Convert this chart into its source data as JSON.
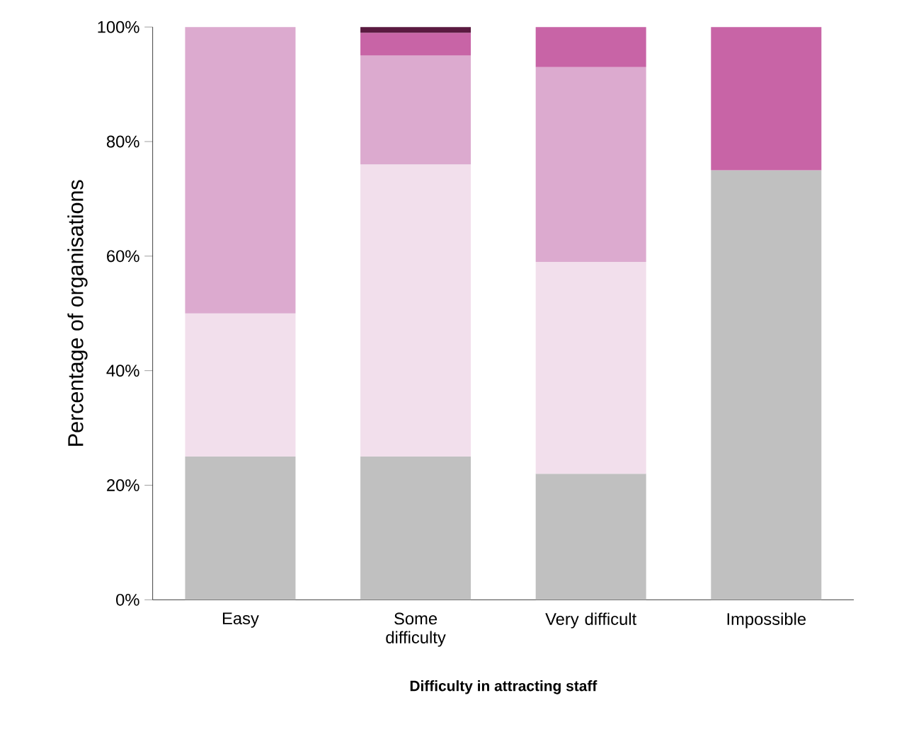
{
  "chart_data": {
    "type": "bar",
    "stacked": true,
    "xlabel": "Difficulty in attracting staff",
    "ylabel": "Percentage of organisations",
    "categories": [
      "Easy",
      "Some difficulty",
      "Very difficult",
      "Impossible"
    ],
    "series": [
      {
        "color": "#c0c0c0",
        "values": [
          25,
          25,
          22,
          75
        ]
      },
      {
        "color": "#f2dfec",
        "values": [
          25,
          51,
          37,
          null
        ]
      },
      {
        "color": "#dcaacf",
        "values": [
          50,
          19,
          34,
          null
        ]
      },
      {
        "color": "#c864a6",
        "values": [
          null,
          4,
          7,
          25
        ]
      },
      {
        "color": "#5a1a40",
        "values": [
          null,
          1,
          null,
          null
        ]
      }
    ],
    "ylim": [
      0,
      100
    ],
    "yticks": [
      {
        "value": 0,
        "label": "0%"
      },
      {
        "value": 20,
        "label": "20%"
      },
      {
        "value": 40,
        "label": "40%"
      },
      {
        "value": 60,
        "label": "60%"
      },
      {
        "value": 80,
        "label": "80%"
      },
      {
        "value": 100,
        "label": "100%"
      }
    ],
    "grid": false
  }
}
